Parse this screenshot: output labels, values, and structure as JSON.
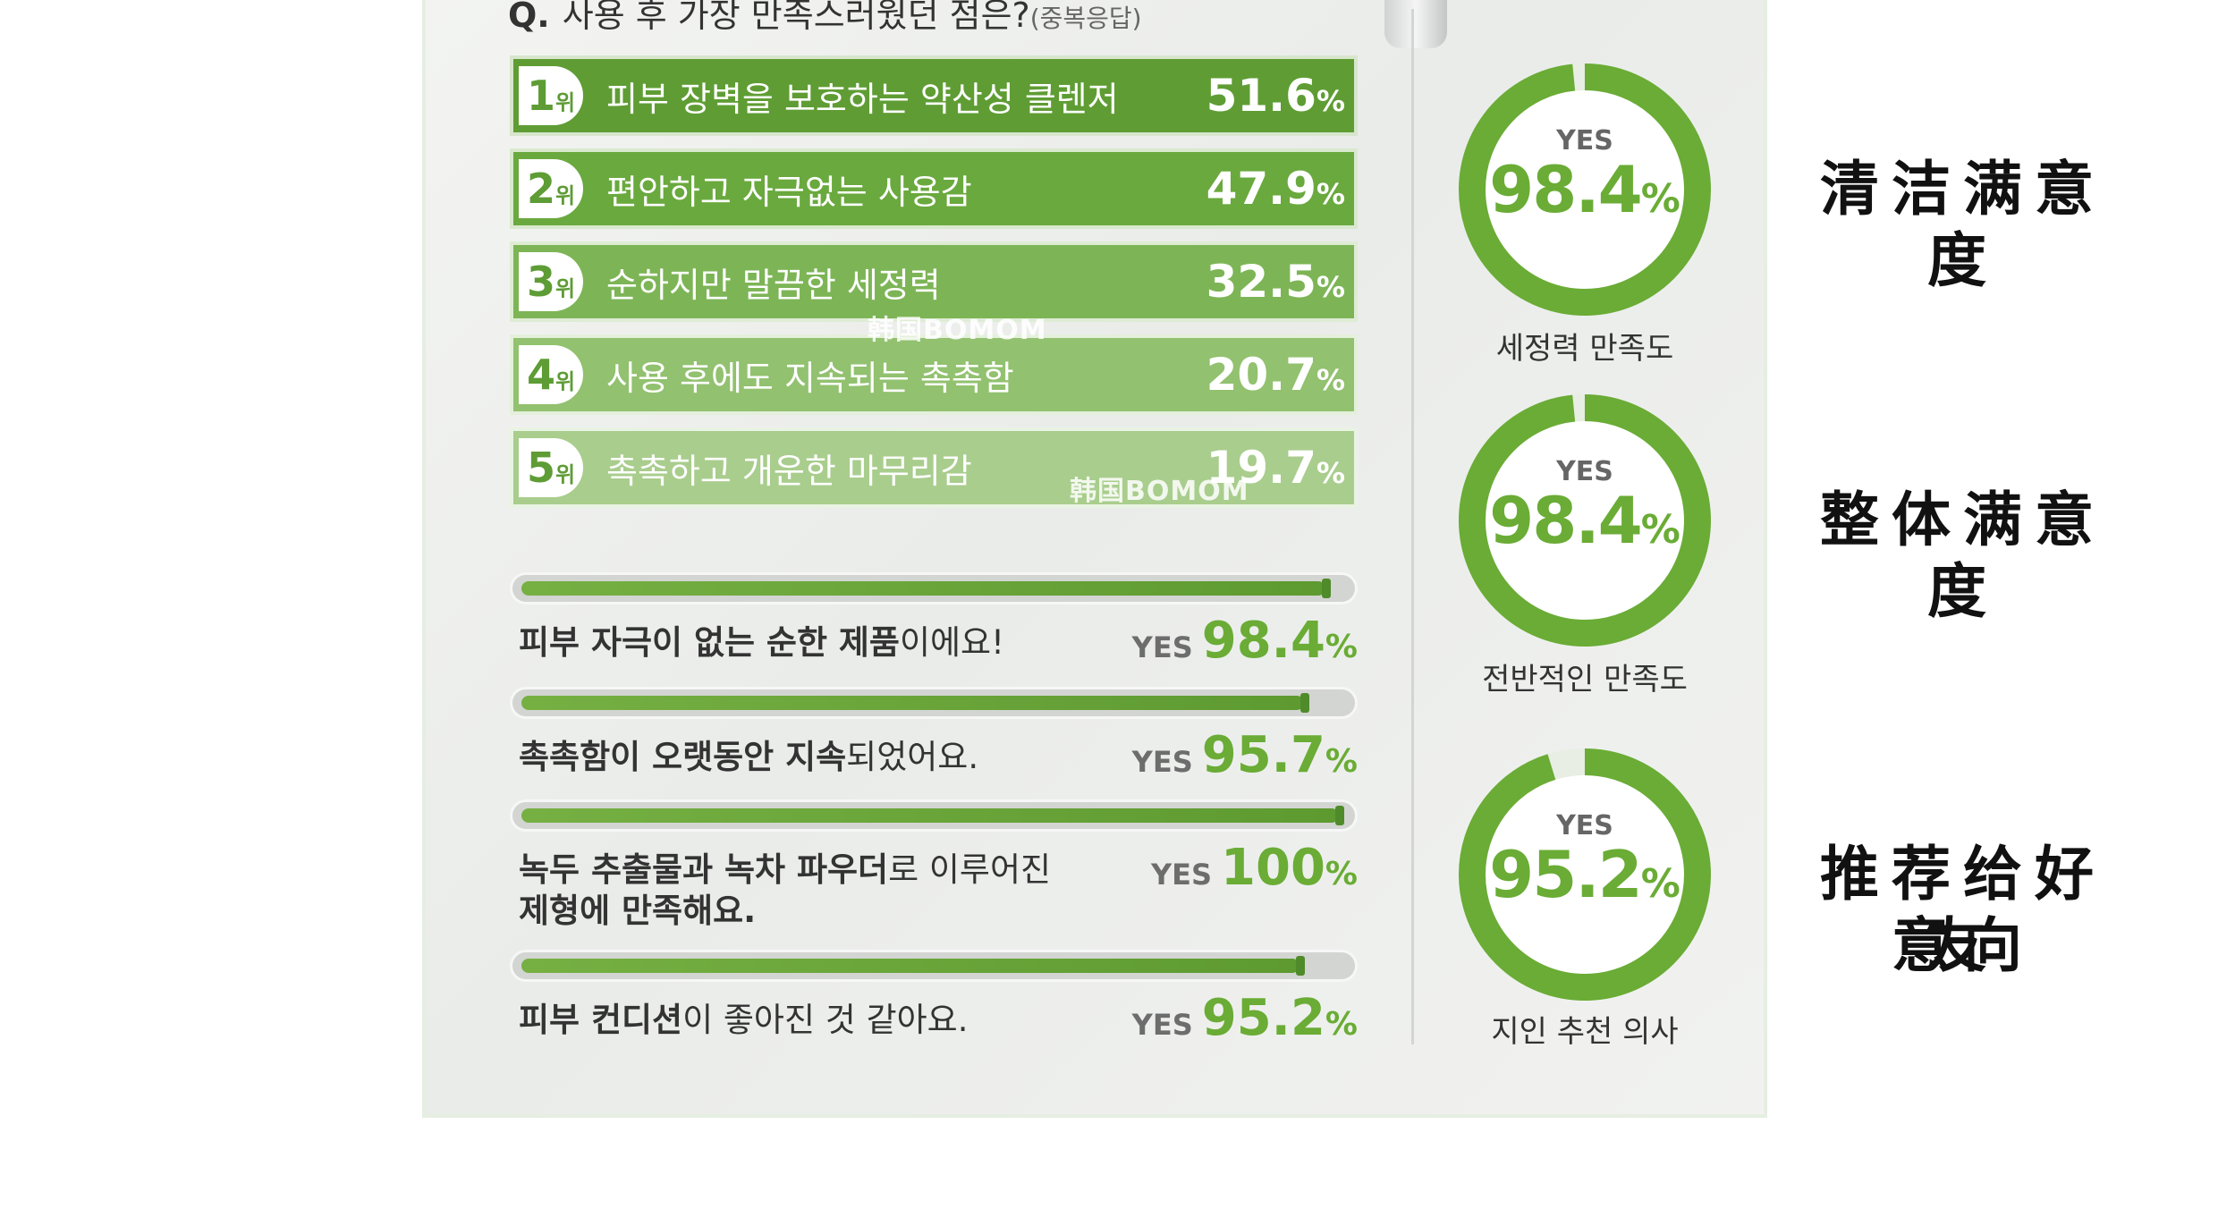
{
  "question": {
    "prefix": "Q.",
    "text": "사용 후 가장 만족스러웠던 점은?",
    "note": "(중복응답)"
  },
  "rank_suffix": "위",
  "yes_label": "YES",
  "percent_sign": "%",
  "rankings": [
    {
      "rank": "1",
      "label": "피부 장벽을 보호하는 약산성 클렌저",
      "value": "51.6"
    },
    {
      "rank": "2",
      "label": "편안하고 자극없는 사용감",
      "value": "47.9"
    },
    {
      "rank": "3",
      "label": "순하지만 말끔한 세정력",
      "value": "32.5"
    },
    {
      "rank": "4",
      "label": "사용 후에도 지속되는 촉촉함",
      "value": "20.7"
    },
    {
      "rank": "5",
      "label": "촉촉하고 개운한 마무리감",
      "value": "19.7"
    }
  ],
  "stats": [
    {
      "text_strong": "피부 자극이 없는 순한 제품",
      "text_rest": "이에요!",
      "text_line2": "",
      "value": "98.4"
    },
    {
      "text_strong": "촉촉함이 오랫동안 지속",
      "text_rest": "되었어요.",
      "text_line2": "",
      "value": "95.7"
    },
    {
      "text_strong": "녹두 추출물과 녹차 파우더",
      "text_rest": "로 이루어진",
      "text_line2": "제형에 만족해요.",
      "value": "100"
    },
    {
      "text_strong": "피부 컨디션",
      "text_rest": "이 좋아진 것 같아요.",
      "text_line2": "",
      "value": "95.2"
    }
  ],
  "gauges": [
    {
      "value": "98.4",
      "caption": "세정력 만족도"
    },
    {
      "value": "98.4",
      "caption": "전반적인 만족도"
    },
    {
      "value": "95.2",
      "caption": "지인 추천 의사"
    }
  ],
  "chinese_labels": [
    "清洁满意度",
    "整体满意度",
    "推荐给好友",
    "意向"
  ],
  "watermark": "韩国BOMOM",
  "colors": {
    "rank": [
      "#5f9d34",
      "#6aa93e",
      "#7db556",
      "#92c16f",
      "#a9cd8d"
    ],
    "accent": "#6aac35"
  },
  "chart_data": [
    {
      "type": "bar",
      "title": "사용 후 가장 만족스러웠던 점은?",
      "categories": [
        "피부 장벽을 보호하는 약산성 클렌저",
        "편안하고 자극없는 사용감",
        "순하지만 말끔한 세정력",
        "사용 후에도 지속되는 촉촉함",
        "촉촉하고 개운한 마무리감"
      ],
      "values": [
        51.6,
        47.9,
        32.5,
        20.7,
        19.7
      ]
    },
    {
      "type": "bar",
      "categories": [
        "피부 자극이 없는 순한 제품이에요!",
        "촉촉함이 오랫동안 지속되었어요.",
        "녹두 추출물과 녹차 파우더로 이루어진 제형에 만족해요.",
        "피부 컨디션이 좋아진 것 같아요."
      ],
      "values": [
        98.4,
        95.7,
        100,
        95.2
      ],
      "ylim": [
        0,
        100
      ]
    },
    {
      "type": "pie",
      "categories": [
        "세정력 만족도",
        "전반적인 만족도",
        "지인 추천 의사"
      ],
      "values": [
        98.4,
        98.4,
        95.2
      ]
    }
  ]
}
